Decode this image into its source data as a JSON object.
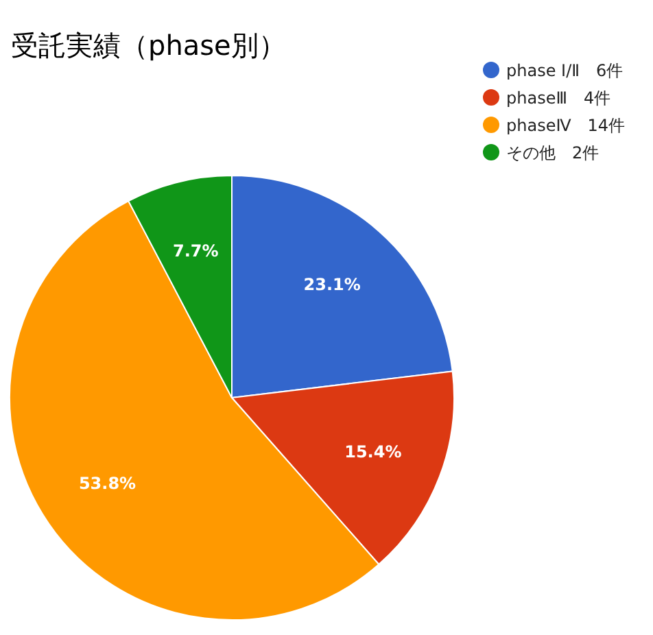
{
  "chart_data": {
    "type": "pie",
    "title": "受託実績（phase別）",
    "categories": [
      "phase Ⅰ/Ⅱ　6件",
      "phaseⅢ　4件",
      "phaseⅣ　14件",
      "その他　2件"
    ],
    "values": [
      23.1,
      15.4,
      53.8,
      7.7
    ],
    "colors": [
      "#3366cc",
      "#dc3912",
      "#ff9900",
      "#109618"
    ],
    "value_labels": [
      "23.1%",
      "15.4%",
      "53.8%",
      "7.7%"
    ],
    "legend": "top right"
  }
}
